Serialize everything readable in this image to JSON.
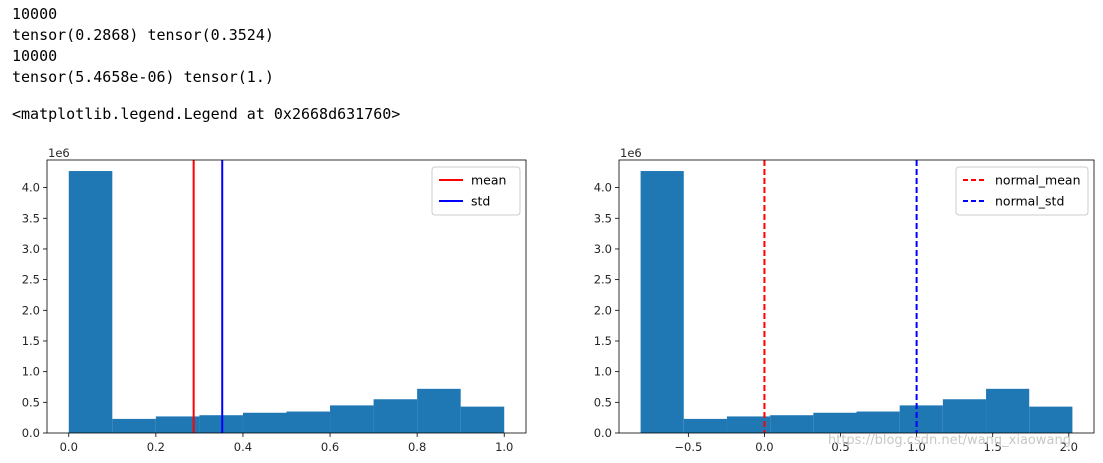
{
  "console": {
    "lines": [
      "10000",
      "tensor(0.2868) tensor(0.3524)",
      "10000",
      "tensor(5.4658e-06) tensor(1.)"
    ],
    "legend_repr": "<matplotlib.legend.Legend at 0x2668d631760>"
  },
  "watermark": "https://blog.csdn.net/wang_xiaowang",
  "chart_data": [
    {
      "type": "bar",
      "multiplier_label": "1e6",
      "bar_color": "#1f77b4",
      "bin_edges": [
        0.0,
        0.1,
        0.2,
        0.3,
        0.4,
        0.5,
        0.6,
        0.7,
        0.8,
        0.9,
        1.0
      ],
      "values": [
        4.27,
        0.23,
        0.27,
        0.29,
        0.33,
        0.35,
        0.45,
        0.55,
        0.72,
        0.43
      ],
      "xlim": [
        -0.05,
        1.05
      ],
      "ylim": [
        0,
        4.45
      ],
      "xticks": [
        0.0,
        0.2,
        0.4,
        0.6,
        0.8,
        1.0
      ],
      "xtick_labels": [
        "0.0",
        "0.2",
        "0.4",
        "0.6",
        "0.8",
        "1.0"
      ],
      "yticks": [
        0,
        0.5,
        1.0,
        1.5,
        2.0,
        2.5,
        3.0,
        3.5,
        4.0
      ],
      "ytick_labels": [
        "0.0",
        "0.5",
        "1.0",
        "1.5",
        "2.0",
        "2.5",
        "3.0",
        "3.5",
        "4.0"
      ],
      "vlines": [
        {
          "name": "mean",
          "x": 0.2868,
          "color": "#ff0000",
          "style": "solid"
        },
        {
          "name": "std",
          "x": 0.3524,
          "color": "#0000ff",
          "style": "solid"
        }
      ],
      "legend_position": "top-right"
    },
    {
      "type": "bar",
      "multiplier_label": "1e6",
      "bar_color": "#1f77b4",
      "bin_edges": [
        -0.8138,
        -0.5301,
        -0.2463,
        0.0374,
        0.3212,
        0.6049,
        0.8887,
        1.1724,
        1.4562,
        1.7399,
        2.0237
      ],
      "values": [
        4.27,
        0.23,
        0.27,
        0.29,
        0.33,
        0.35,
        0.45,
        0.55,
        0.72,
        0.43
      ],
      "xlim": [
        -0.9557,
        2.1656
      ],
      "ylim": [
        0,
        4.45
      ],
      "xticks": [
        -0.5,
        0.0,
        0.5,
        1.0,
        1.5,
        2.0
      ],
      "xtick_labels": [
        "−0.5",
        "0.0",
        "0.5",
        "1.0",
        "1.5",
        "2.0"
      ],
      "yticks": [
        0,
        0.5,
        1.0,
        1.5,
        2.0,
        2.5,
        3.0,
        3.5,
        4.0
      ],
      "ytick_labels": [
        "0.0",
        "0.5",
        "1.0",
        "1.5",
        "2.0",
        "2.5",
        "3.0",
        "3.5",
        "4.0"
      ],
      "vlines": [
        {
          "name": "normal_mean",
          "x": 0.0,
          "color": "#ff0000",
          "style": "dashed"
        },
        {
          "name": "normal_std",
          "x": 1.0,
          "color": "#0000ff",
          "style": "dashed"
        }
      ],
      "legend_position": "top-right"
    }
  ]
}
